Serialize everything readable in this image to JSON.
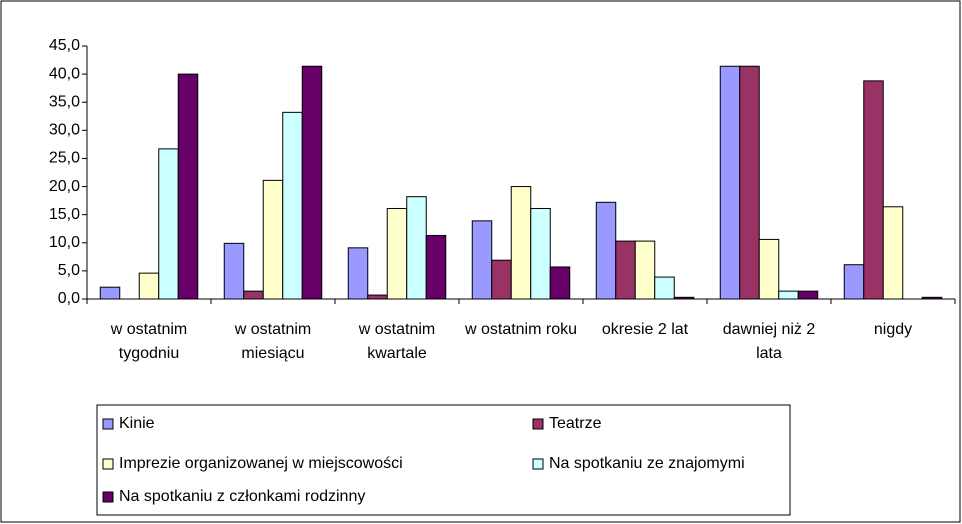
{
  "chart_data": {
    "type": "bar",
    "categories": [
      "w ostatnim tygodniu",
      "w ostatnim miesiącu",
      "w ostatnim kwartale",
      "w ostatnim roku",
      "okresie 2 lat",
      "dawniej niż 2 lata",
      "nigdy"
    ],
    "series": [
      {
        "name": "Kinie",
        "color": "#9999ff",
        "values": [
          2.1,
          9.9,
          9.1,
          13.9,
          17.2,
          41.4,
          6.1
        ]
      },
      {
        "name": "Teatrze",
        "color": "#993366",
        "values": [
          0,
          1.4,
          0.7,
          6.9,
          10.3,
          41.4,
          38.8
        ]
      },
      {
        "name": "Imprezie organizowanej w miejscowości",
        "color": "#ffffcc",
        "values": [
          4.6,
          21.1,
          16.1,
          20.0,
          10.3,
          10.6,
          16.4
        ]
      },
      {
        "name": "Na spotkaniu ze znajomymi",
        "color": "#ccffff",
        "values": [
          26.7,
          33.2,
          18.2,
          16.1,
          3.9,
          1.4,
          0
        ]
      },
      {
        "name": "Na spotkaniu z członkami rodzinny",
        "color": "#660066",
        "values": [
          40.0,
          41.4,
          11.3,
          5.7,
          0.3,
          1.4,
          0.3
        ]
      }
    ],
    "ylim": [
      0,
      45
    ],
    "yticks": [
      {
        "value": 0,
        "label": "0,0"
      },
      {
        "value": 5,
        "label": "5,0"
      },
      {
        "value": 10,
        "label": "10,0"
      },
      {
        "value": 15,
        "label": "15,0"
      },
      {
        "value": 20,
        "label": "20,0"
      },
      {
        "value": 25,
        "label": "25,0"
      },
      {
        "value": 30,
        "label": "30,0"
      },
      {
        "value": 35,
        "label": "35,0"
      },
      {
        "value": 40,
        "label": "40,0"
      },
      {
        "value": 45,
        "label": "45,0"
      }
    ],
    "grid": false,
    "legend": "bottom"
  }
}
